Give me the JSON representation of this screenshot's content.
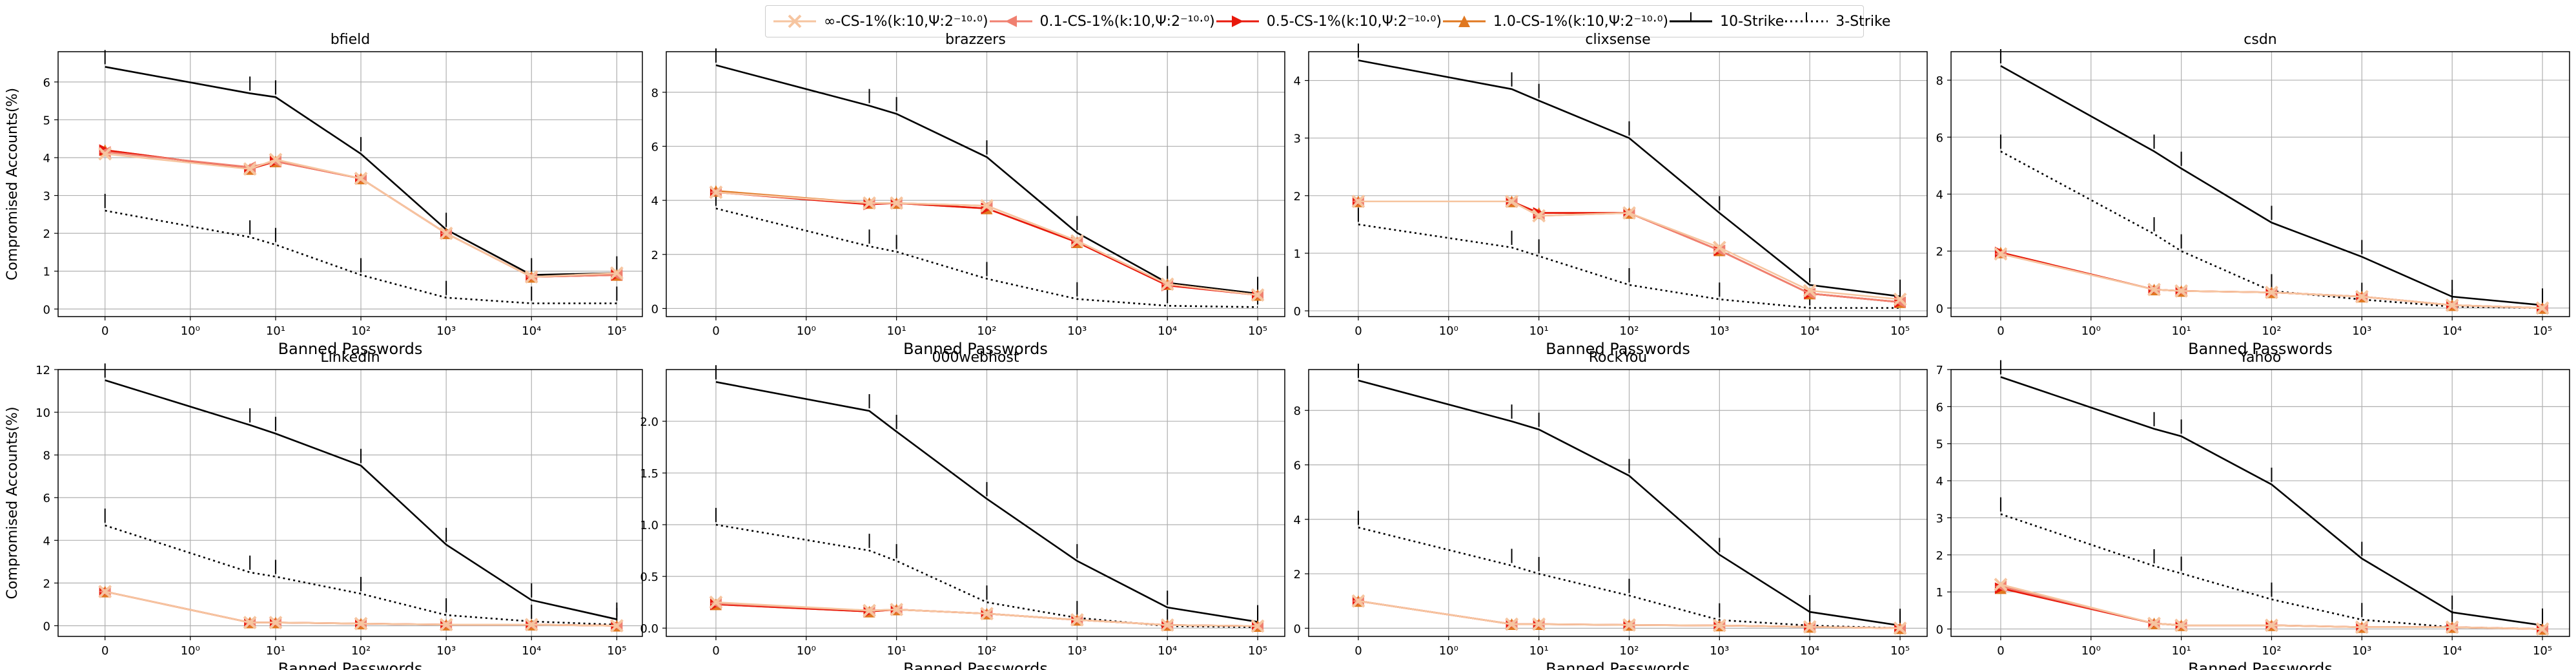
{
  "chart_data": {
    "type": "line",
    "shared_xlabel": "Banned Passwords",
    "shared_ylabel": "Compromised Accounts(%)",
    "xtick_labels": [
      "0",
      "10⁰",
      "10¹",
      "10²",
      "10³",
      "10⁴",
      "10⁵"
    ],
    "x": [
      0,
      5,
      10,
      100,
      1000,
      10000,
      100000
    ],
    "x_scale": "symlog",
    "grid": true,
    "legend_position": "top-center",
    "legend": [
      {
        "key": "inf",
        "label": "∞-CS-1%(k:10,Ψ:2⁻¹⁰·⁰)",
        "color": "#f6c5a0",
        "marker": "x",
        "line": "solid"
      },
      {
        "key": "p01",
        "label": "0.1-CS-1%(k:10,Ψ:2⁻¹⁰·⁰)",
        "color": "#f08070",
        "marker": "<",
        "line": "solid"
      },
      {
        "key": "p05",
        "label": "0.5-CS-1%(k:10,Ψ:2⁻¹⁰·⁰)",
        "color": "#e8180c",
        "marker": ">",
        "line": "solid"
      },
      {
        "key": "p10",
        "label": "1.0-CS-1%(k:10,Ψ:2⁻¹⁰·⁰)",
        "color": "#e07820",
        "marker": "^",
        "line": "solid"
      },
      {
        "key": "s10",
        "label": "10-Strike",
        "color": "#000000",
        "marker": "|",
        "line": "solid"
      },
      {
        "key": "s3",
        "label": "3-Strike",
        "color": "#000000",
        "marker": "|",
        "line": "dotted"
      }
    ],
    "panels": [
      {
        "title": "bfield",
        "ylim": [
          -0.2,
          6.8
        ],
        "yticks": [
          0,
          1,
          2,
          3,
          4,
          5,
          6
        ],
        "ylabel": "Compromised Accounts(%)",
        "series": {
          "inf": [
            4.1,
            3.7,
            3.95,
            3.45,
            2.0,
            0.85,
            0.95
          ],
          "p01": [
            4.15,
            3.75,
            3.9,
            3.45,
            2.0,
            0.85,
            0.9
          ],
          "p05": [
            4.2,
            3.7,
            3.9,
            3.45,
            2.0,
            0.85,
            0.9
          ],
          "p10": [
            4.2,
            3.7,
            3.9,
            3.45,
            2.0,
            0.85,
            0.9
          ],
          "s10": [
            6.4,
            5.7,
            5.6,
            4.1,
            2.1,
            0.9,
            0.95
          ],
          "s3": [
            2.6,
            1.9,
            1.7,
            0.9,
            0.3,
            0.15,
            0.15
          ]
        }
      },
      {
        "title": "brazzers",
        "ylim": [
          -0.3,
          9.5
        ],
        "yticks": [
          0,
          2,
          4,
          6,
          8
        ],
        "ylabel": "",
        "series": {
          "inf": [
            4.3,
            3.9,
            3.9,
            3.8,
            2.5,
            0.9,
            0.5
          ],
          "p01": [
            4.3,
            3.9,
            3.9,
            3.8,
            2.5,
            0.9,
            0.5
          ],
          "p05": [
            4.3,
            3.85,
            3.9,
            3.7,
            2.45,
            0.85,
            0.5
          ],
          "p10": [
            4.35,
            3.9,
            3.9,
            3.7,
            2.45,
            0.9,
            0.5
          ],
          "s10": [
            9.0,
            7.5,
            7.2,
            5.6,
            2.8,
            0.95,
            0.55
          ],
          "s3": [
            3.7,
            2.3,
            2.1,
            1.1,
            0.35,
            0.1,
            0.05
          ]
        }
      },
      {
        "title": "clixsense",
        "ylim": [
          -0.1,
          4.5
        ],
        "yticks": [
          0,
          1,
          2,
          3,
          4
        ],
        "ylabel": "",
        "series": {
          "inf": [
            1.9,
            1.9,
            1.65,
            1.7,
            1.1,
            0.35,
            0.2
          ],
          "p01": [
            1.9,
            1.9,
            1.65,
            1.7,
            1.05,
            0.3,
            0.15
          ],
          "p05": [
            1.9,
            1.9,
            1.7,
            1.7,
            1.05,
            0.3,
            0.15
          ],
          "p10": [
            1.9,
            1.9,
            1.7,
            1.7,
            1.05,
            0.3,
            0.15
          ],
          "s10": [
            4.35,
            3.85,
            3.65,
            3.0,
            1.7,
            0.45,
            0.25
          ],
          "s3": [
            1.5,
            1.1,
            0.95,
            0.45,
            0.2,
            0.05,
            0.05
          ]
        }
      },
      {
        "title": "csdn",
        "ylim": [
          -0.3,
          9.0
        ],
        "yticks": [
          0,
          2,
          4,
          6,
          8
        ],
        "ylabel": "",
        "series": {
          "inf": [
            1.9,
            0.65,
            0.6,
            0.55,
            0.4,
            0.1,
            0.0
          ],
          "p01": [
            1.9,
            0.65,
            0.6,
            0.55,
            0.4,
            0.1,
            0.0
          ],
          "p05": [
            1.95,
            0.65,
            0.6,
            0.55,
            0.4,
            0.1,
            0.0
          ],
          "p10": [
            1.95,
            0.65,
            0.6,
            0.55,
            0.4,
            0.1,
            0.0
          ],
          "s10": [
            8.5,
            5.5,
            4.9,
            3.0,
            1.8,
            0.4,
            0.1
          ],
          "s3": [
            5.5,
            2.6,
            2.0,
            0.6,
            0.3,
            0.05,
            0.0
          ]
        }
      },
      {
        "title": "LinkedIn",
        "ylim": [
          -0.5,
          12.0
        ],
        "yticks": [
          0,
          2,
          4,
          6,
          8,
          10,
          12
        ],
        "ylabel": "Compromised Accounts(%)",
        "series": {
          "inf": [
            1.6,
            0.15,
            0.15,
            0.1,
            0.05,
            0.05,
            0.0
          ],
          "p01": [
            1.6,
            0.15,
            0.15,
            0.1,
            0.05,
            0.05,
            0.0
          ],
          "p05": [
            1.6,
            0.15,
            0.15,
            0.1,
            0.05,
            0.05,
            0.0
          ],
          "p10": [
            1.6,
            0.15,
            0.15,
            0.1,
            0.05,
            0.05,
            0.0
          ],
          "s10": [
            11.5,
            9.4,
            9.0,
            7.5,
            3.8,
            1.2,
            0.3
          ],
          "s3": [
            4.7,
            2.5,
            2.3,
            1.5,
            0.5,
            0.2,
            0.05
          ]
        }
      },
      {
        "title": "000webhost",
        "ylim": [
          -0.08,
          2.5
        ],
        "yticks": [
          0.0,
          0.5,
          1.0,
          1.5,
          2.0
        ],
        "ylabel": "",
        "series": {
          "inf": [
            0.25,
            0.17,
            0.18,
            0.14,
            0.08,
            0.03,
            0.02
          ],
          "p01": [
            0.24,
            0.17,
            0.18,
            0.14,
            0.08,
            0.03,
            0.02
          ],
          "p05": [
            0.23,
            0.16,
            0.18,
            0.14,
            0.08,
            0.03,
            0.02
          ],
          "p10": [
            0.23,
            0.16,
            0.18,
            0.14,
            0.08,
            0.03,
            0.02
          ],
          "s10": [
            2.38,
            2.1,
            1.9,
            1.25,
            0.65,
            0.2,
            0.06
          ],
          "s3": [
            1.0,
            0.75,
            0.65,
            0.25,
            0.1,
            0.02,
            0.01
          ]
        }
      },
      {
        "title": "RockYou",
        "ylim": [
          -0.3,
          9.5
        ],
        "yticks": [
          0,
          2,
          4,
          6,
          8
        ],
        "ylabel": "",
        "series": {
          "inf": [
            1.0,
            0.15,
            0.15,
            0.12,
            0.1,
            0.05,
            0.0
          ],
          "p01": [
            1.0,
            0.15,
            0.15,
            0.12,
            0.1,
            0.05,
            0.0
          ],
          "p05": [
            1.0,
            0.15,
            0.15,
            0.12,
            0.1,
            0.05,
            0.0
          ],
          "p10": [
            1.0,
            0.15,
            0.15,
            0.12,
            0.1,
            0.05,
            0.0
          ],
          "s10": [
            9.1,
            7.6,
            7.3,
            5.6,
            2.7,
            0.6,
            0.1
          ],
          "s3": [
            3.7,
            2.3,
            2.0,
            1.2,
            0.3,
            0.1,
            0.0
          ]
        }
      },
      {
        "title": "Yahoo",
        "ylim": [
          -0.2,
          7.0
        ],
        "yticks": [
          0,
          1,
          2,
          3,
          4,
          5,
          6,
          7
        ],
        "ylabel": "",
        "series": {
          "inf": [
            1.2,
            0.15,
            0.1,
            0.1,
            0.05,
            0.05,
            0.0
          ],
          "p01": [
            1.15,
            0.15,
            0.1,
            0.1,
            0.05,
            0.05,
            0.0
          ],
          "p05": [
            1.1,
            0.15,
            0.1,
            0.1,
            0.05,
            0.05,
            0.0
          ],
          "p10": [
            1.1,
            0.15,
            0.1,
            0.1,
            0.05,
            0.05,
            0.0
          ],
          "s10": [
            6.8,
            5.4,
            5.2,
            3.9,
            1.9,
            0.45,
            0.1
          ],
          "s3": [
            3.1,
            1.7,
            1.5,
            0.8,
            0.25,
            0.05,
            0.0
          ]
        }
      }
    ]
  }
}
